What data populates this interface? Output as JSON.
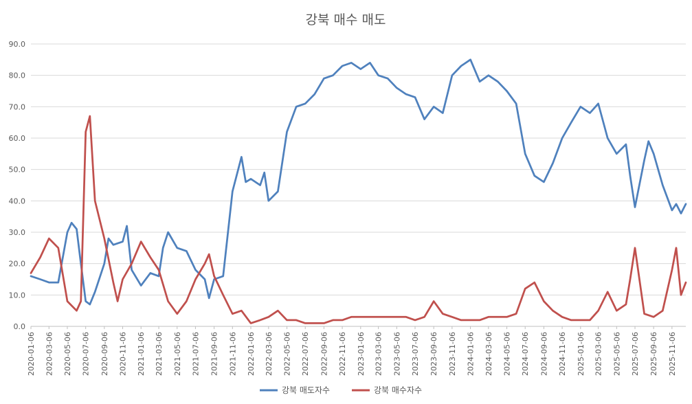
{
  "chart_data": {
    "type": "line",
    "title": "강북 매수 매도",
    "xlabel": "",
    "ylabel": "",
    "ylim": [
      0,
      90
    ],
    "yticks": [
      "0.0",
      "10.0",
      "20.0",
      "30.0",
      "40.0",
      "50.0",
      "60.0",
      "70.0",
      "80.0",
      "90.0"
    ],
    "xticks": [
      "2020-01-06",
      "2020-03-06",
      "2020-05-06",
      "2020-07-06",
      "2020-09-06",
      "2020-11-06",
      "2021-01-06",
      "2021-03-06",
      "2021-05-06",
      "2021-07-06",
      "2021-09-06",
      "2021-11-06",
      "2022-01-06",
      "2022-03-06",
      "2022-05-06",
      "2022-07-06",
      "2022-09-06",
      "2022-11-06",
      "2023-01-06",
      "2023-03-06",
      "2023-05-06",
      "2023-07-06",
      "2023-09-06",
      "2023-11-06",
      "2024-01-06",
      "2024-03-06",
      "2024-05-06",
      "2024-07-06",
      "2024-09-06",
      "2024-11-06",
      "2025-01-06",
      "2025-03-06",
      "2025-05-06",
      "2025-07-06",
      "2025-09-06",
      "2025-11-06"
    ],
    "x_start": "2020-01-06",
    "x_end": "2025-12-22",
    "grid": "horizontal",
    "legend_position": "bottom",
    "series": [
      {
        "name": "강북 매도자수",
        "color": "#4f81bd",
        "x": [
          "2020-01-06",
          "2020-02-06",
          "2020-03-06",
          "2020-04-06",
          "2020-05-06",
          "2020-05-20",
          "2020-06-06",
          "2020-06-20",
          "2020-07-06",
          "2020-07-20",
          "2020-08-06",
          "2020-09-06",
          "2020-09-20",
          "2020-10-06",
          "2020-11-06",
          "2020-11-20",
          "2020-12-06",
          "2021-01-06",
          "2021-02-06",
          "2021-03-06",
          "2021-03-20",
          "2021-04-06",
          "2021-05-06",
          "2021-06-06",
          "2021-07-06",
          "2021-08-06",
          "2021-08-20",
          "2021-09-06",
          "2021-10-06",
          "2021-11-06",
          "2021-12-06",
          "2021-12-20",
          "2022-01-06",
          "2022-02-06",
          "2022-02-20",
          "2022-03-06",
          "2022-04-06",
          "2022-05-06",
          "2022-06-06",
          "2022-07-06",
          "2022-08-06",
          "2022-09-06",
          "2022-10-06",
          "2022-11-06",
          "2022-12-06",
          "2023-01-06",
          "2023-02-06",
          "2023-03-06",
          "2023-04-06",
          "2023-05-06",
          "2023-06-06",
          "2023-07-06",
          "2023-08-06",
          "2023-09-06",
          "2023-10-06",
          "2023-11-06",
          "2023-12-06",
          "2024-01-06",
          "2024-02-06",
          "2024-03-06",
          "2024-04-06",
          "2024-05-06",
          "2024-06-06",
          "2024-07-06",
          "2024-08-06",
          "2024-09-06",
          "2024-10-06",
          "2024-11-06",
          "2024-12-06",
          "2025-01-06",
          "2025-02-06",
          "2025-03-06",
          "2025-04-06",
          "2025-05-06",
          "2025-06-06",
          "2025-06-20",
          "2025-07-06",
          "2025-08-06",
          "2025-08-20",
          "2025-09-06",
          "2025-10-06",
          "2025-11-06",
          "2025-11-20",
          "2025-12-06",
          "2025-12-22"
        ],
        "values": [
          16,
          15,
          14,
          14,
          30,
          33,
          31,
          20,
          8,
          7,
          11,
          20,
          28,
          26,
          27,
          32,
          18,
          13,
          17,
          16,
          25,
          30,
          25,
          24,
          18,
          15,
          9,
          15,
          16,
          43,
          54,
          46,
          47,
          45,
          49,
          40,
          43,
          62,
          70,
          71,
          74,
          79,
          80,
          83,
          84,
          82,
          84,
          80,
          79,
          76,
          74,
          73,
          66,
          70,
          68,
          80,
          83,
          85,
          78,
          80,
          78,
          75,
          71,
          55,
          48,
          46,
          52,
          60,
          65,
          70,
          68,
          71,
          60,
          55,
          58,
          48,
          38,
          53,
          59,
          55,
          45,
          37,
          39,
          36,
          39
        ],
        "visible_labels": []
      },
      {
        "name": "강북 매수자수",
        "color": "#c0504d",
        "x": [
          "2020-01-06",
          "2020-02-06",
          "2020-03-06",
          "2020-04-06",
          "2020-05-06",
          "2020-06-06",
          "2020-06-20",
          "2020-07-06",
          "2020-07-20",
          "2020-08-06",
          "2020-09-06",
          "2020-10-06",
          "2020-10-20",
          "2020-11-06",
          "2020-12-06",
          "2021-01-06",
          "2021-02-06",
          "2021-03-06",
          "2021-04-06",
          "2021-05-06",
          "2021-06-06",
          "2021-07-06",
          "2021-08-06",
          "2021-08-20",
          "2021-09-06",
          "2021-10-06",
          "2021-11-06",
          "2021-12-06",
          "2022-01-06",
          "2022-02-06",
          "2022-03-06",
          "2022-04-06",
          "2022-05-06",
          "2022-06-06",
          "2022-07-06",
          "2022-08-06",
          "2022-09-06",
          "2022-10-06",
          "2022-11-06",
          "2022-12-06",
          "2023-01-06",
          "2023-02-06",
          "2023-03-06",
          "2023-04-06",
          "2023-05-06",
          "2023-06-06",
          "2023-07-06",
          "2023-08-06",
          "2023-09-06",
          "2023-10-06",
          "2023-11-06",
          "2023-12-06",
          "2024-01-06",
          "2024-02-06",
          "2024-03-06",
          "2024-04-06",
          "2024-05-06",
          "2024-06-06",
          "2024-07-06",
          "2024-08-06",
          "2024-09-06",
          "2024-10-06",
          "2024-11-06",
          "2024-12-06",
          "2025-01-06",
          "2025-02-06",
          "2025-03-06",
          "2025-04-06",
          "2025-05-06",
          "2025-06-06",
          "2025-06-20",
          "2025-07-06",
          "2025-08-06",
          "2025-09-06",
          "2025-10-06",
          "2025-11-06",
          "2025-11-20",
          "2025-12-06",
          "2025-12-22"
        ],
        "values": [
          17,
          22,
          28,
          25,
          8,
          5,
          8,
          62,
          67,
          40,
          28,
          14,
          8,
          15,
          20,
          27,
          22,
          18,
          8,
          4,
          8,
          15,
          20,
          23,
          16,
          10,
          4,
          5,
          1,
          2,
          3,
          5,
          2,
          2,
          1,
          1,
          1,
          2,
          2,
          3,
          3,
          3,
          3,
          3,
          3,
          3,
          2,
          3,
          8,
          4,
          3,
          2,
          2,
          2,
          3,
          3,
          3,
          4,
          12,
          14,
          8,
          5,
          3,
          2,
          2,
          2,
          5,
          11,
          5,
          7,
          15,
          25,
          4,
          3,
          5,
          18,
          25,
          10,
          14
        ],
        "visible_labels": []
      }
    ]
  }
}
